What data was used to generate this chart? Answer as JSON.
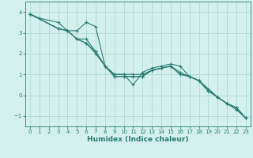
{
  "xlabel": "Humidex (Indice chaleur)",
  "xlim": [
    -0.5,
    23.5
  ],
  "ylim": [
    -1.5,
    4.5
  ],
  "xticks": [
    0,
    1,
    2,
    3,
    4,
    5,
    6,
    7,
    8,
    9,
    10,
    11,
    12,
    13,
    14,
    15,
    16,
    17,
    18,
    19,
    20,
    21,
    22,
    23
  ],
  "yticks": [
    -1,
    0,
    1,
    2,
    3,
    4
  ],
  "bg_color": "#d4f0ec",
  "grid_color": "#b0d9d4",
  "line_color": "#2a7d72",
  "lines": [
    {
      "x": [
        0,
        1,
        3,
        4,
        5,
        6,
        7,
        8,
        9,
        10,
        11,
        12,
        13,
        14,
        15,
        16,
        17,
        18,
        19,
        20,
        21,
        22,
        23
      ],
      "y": [
        3.9,
        3.7,
        3.5,
        3.1,
        3.1,
        3.5,
        3.3,
        1.4,
        1.0,
        1.0,
        0.5,
        1.1,
        1.3,
        1.4,
        1.5,
        1.4,
        0.9,
        0.7,
        0.3,
        -0.1,
        -0.4,
        -0.7,
        -1.1
      ]
    },
    {
      "x": [
        0,
        3,
        4,
        5,
        6,
        7,
        8,
        9,
        10,
        11,
        12,
        13,
        14,
        15,
        16,
        17,
        18,
        19,
        20,
        21,
        22,
        23
      ],
      "y": [
        3.9,
        3.2,
        3.1,
        2.7,
        2.7,
        2.1,
        1.4,
        1.0,
        1.0,
        1.0,
        1.0,
        1.2,
        1.3,
        1.4,
        1.1,
        0.9,
        0.7,
        0.3,
        -0.1,
        -0.4,
        -0.6,
        -1.1
      ]
    },
    {
      "x": [
        0,
        3,
        4,
        5,
        6,
        7,
        8,
        9,
        10,
        11,
        12,
        13,
        14,
        15,
        16,
        17,
        18,
        19,
        20,
        21,
        22,
        23
      ],
      "y": [
        3.9,
        3.2,
        3.1,
        2.7,
        2.5,
        2.1,
        1.4,
        0.9,
        0.9,
        0.9,
        0.9,
        1.2,
        1.3,
        1.4,
        1.0,
        0.9,
        0.7,
        0.2,
        -0.1,
        -0.4,
        -0.6,
        -1.1
      ]
    },
    {
      "x": [
        0,
        3,
        4,
        5,
        6,
        7,
        8,
        9,
        10,
        11,
        12,
        13,
        14,
        15,
        16,
        17,
        18,
        19,
        20,
        21,
        22,
        23
      ],
      "y": [
        3.9,
        3.2,
        3.1,
        2.7,
        2.5,
        2.0,
        1.4,
        0.9,
        0.9,
        0.9,
        0.9,
        1.2,
        1.3,
        1.4,
        1.0,
        0.9,
        0.7,
        0.2,
        -0.1,
        -0.4,
        -0.6,
        -1.1
      ]
    }
  ]
}
